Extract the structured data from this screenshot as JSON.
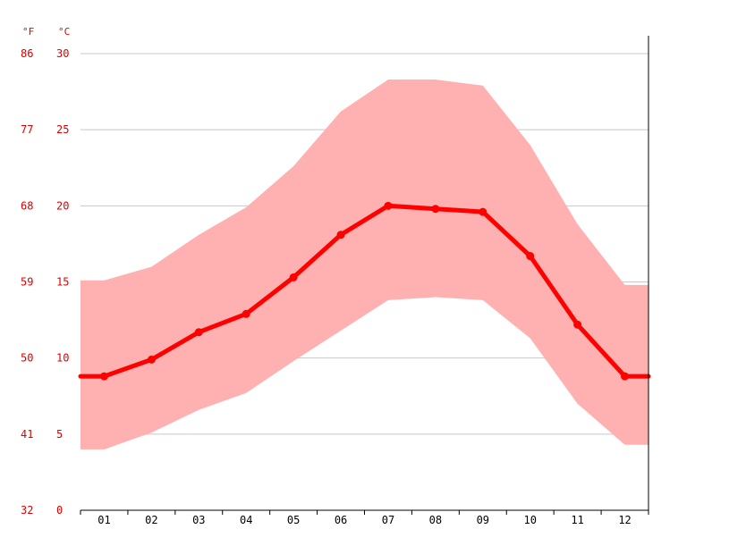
{
  "chart_data": {
    "type": "line",
    "categories": [
      "01",
      "02",
      "03",
      "04",
      "05",
      "06",
      "07",
      "08",
      "09",
      "10",
      "11",
      "12"
    ],
    "series": [
      {
        "values": [
          8.8,
          9.9,
          11.7,
          12.9,
          15.3,
          18.1,
          20.0,
          19.8,
          19.6,
          16.7,
          12.2,
          8.8
        ],
        "color": "#ff0000",
        "role": "mean"
      }
    ],
    "band": {
      "lower": [
        4.0,
        5.1,
        6.6,
        7.7,
        9.8,
        11.8,
        13.8,
        14.0,
        13.8,
        11.3,
        7.0,
        4.3
      ],
      "upper": [
        15.1,
        16.0,
        18.1,
        19.9,
        22.6,
        26.2,
        28.3,
        28.3,
        27.9,
        24.0,
        18.8,
        14.8
      ],
      "color": "#ffb1b1"
    },
    "y_left_unit": "°F",
    "y_right_unit": "°C",
    "y_ticks_f": [
      "32",
      "41",
      "50",
      "59",
      "68",
      "77",
      "86"
    ],
    "y_ticks_c": [
      "0",
      "5",
      "10",
      "15",
      "20",
      "25",
      "30"
    ],
    "ylim": [
      0,
      30
    ],
    "grid": true,
    "title": "",
    "xlabel": "",
    "ylabel": ""
  }
}
